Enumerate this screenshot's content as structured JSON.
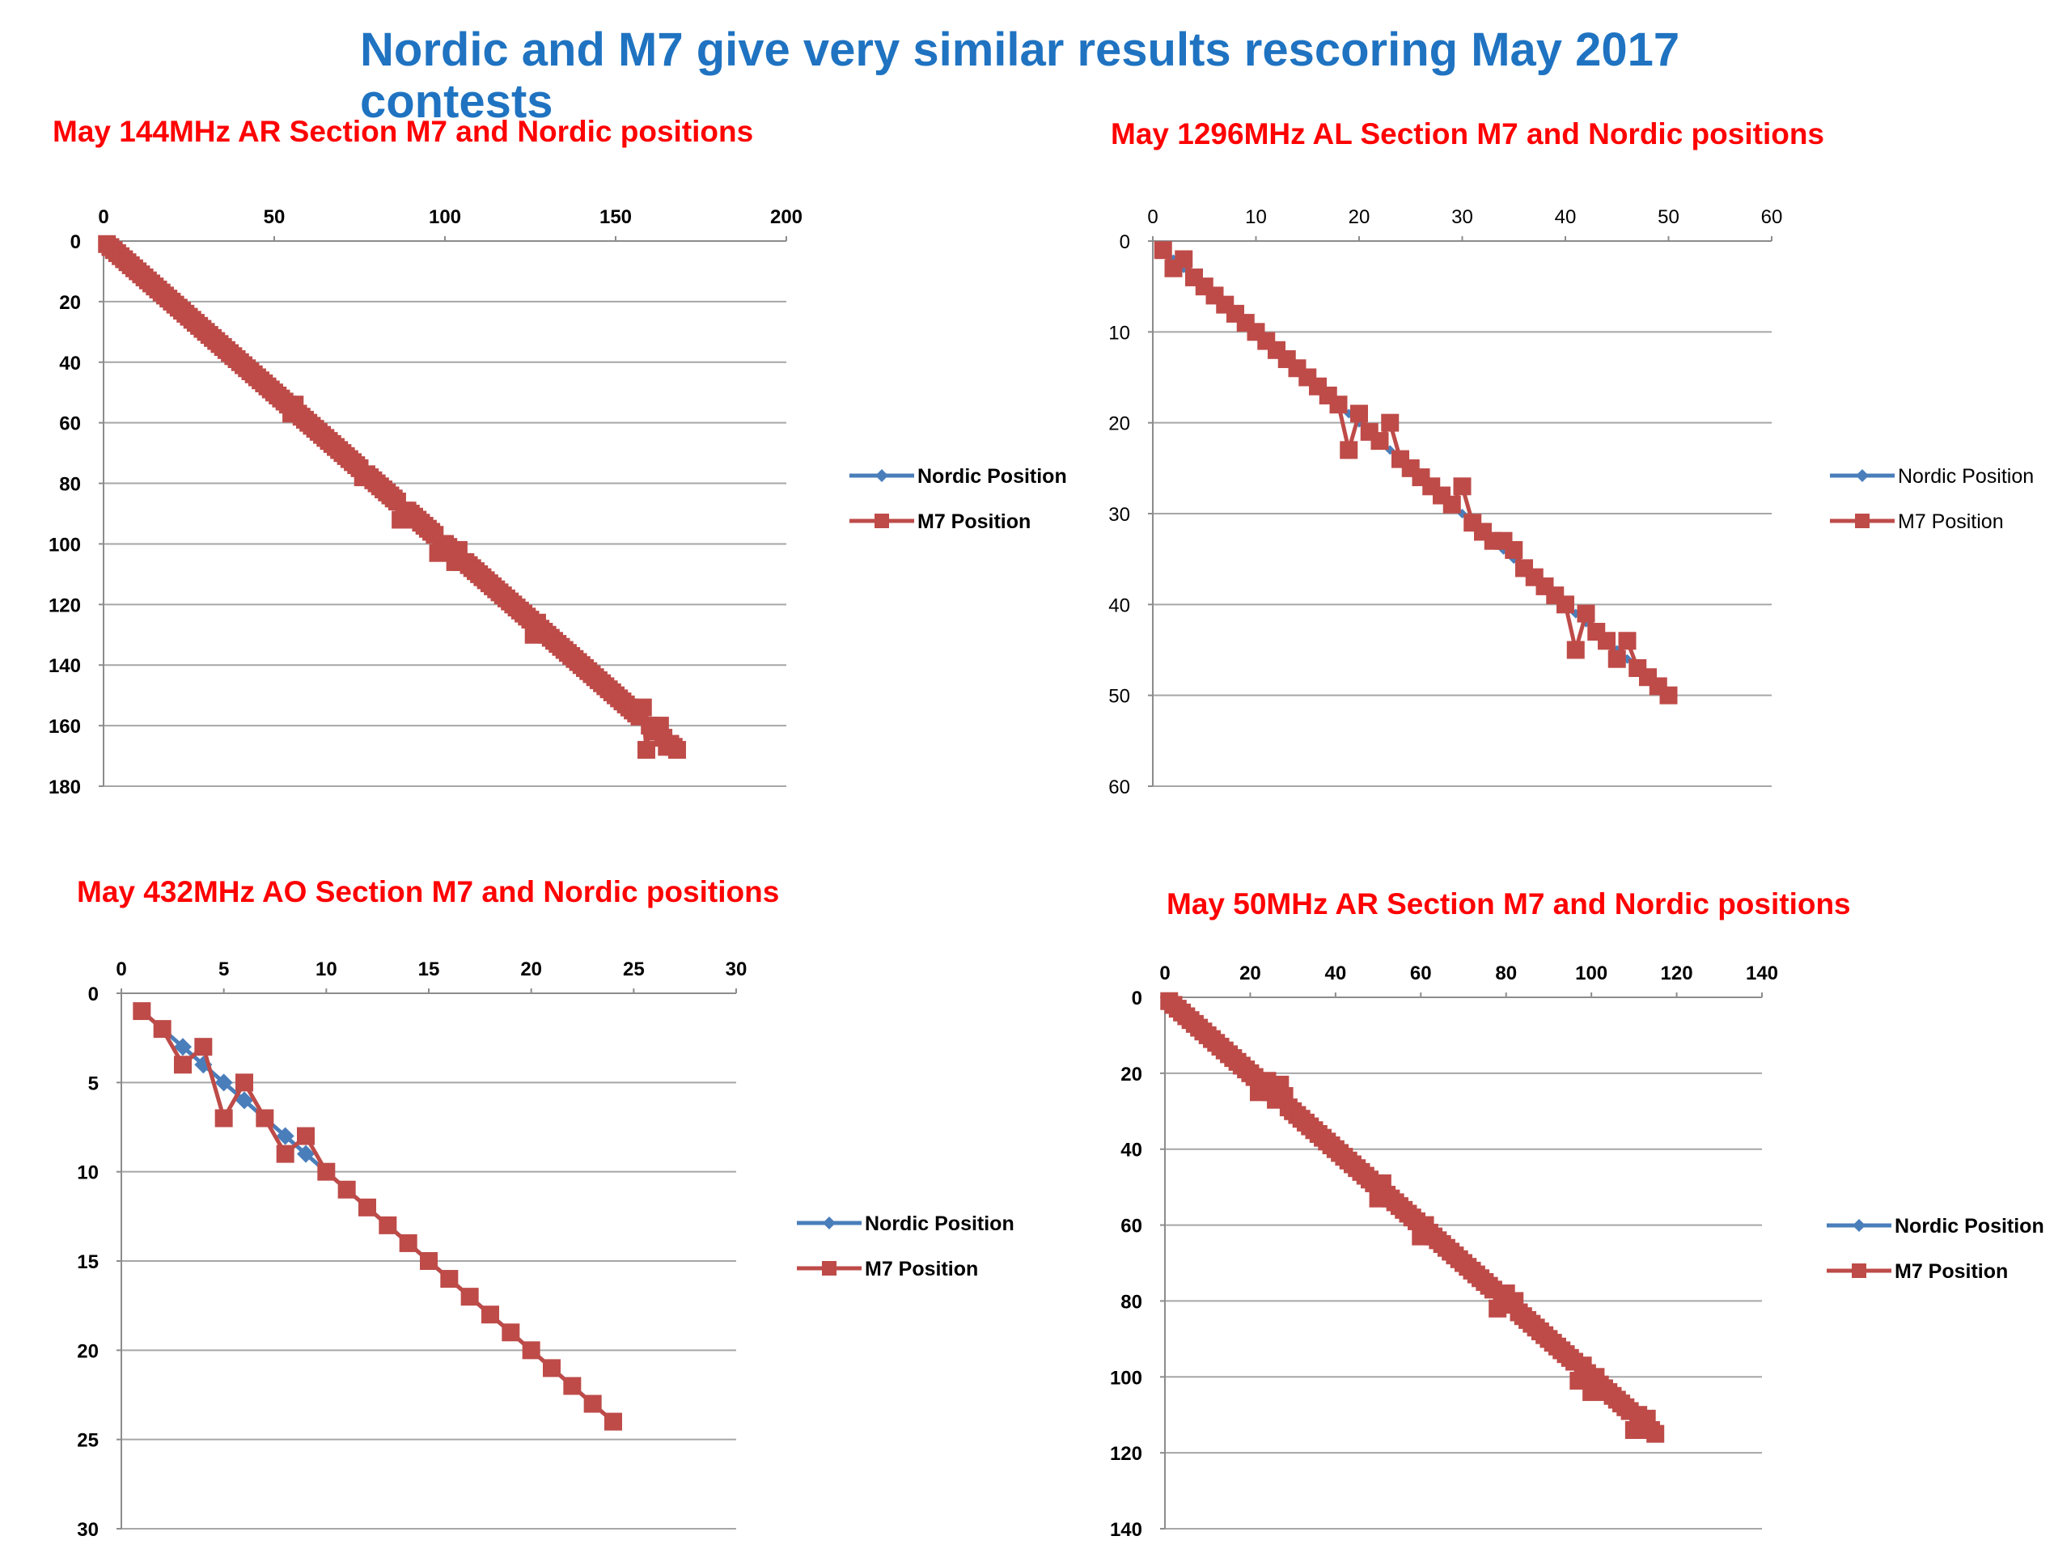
{
  "page": {
    "title": "Nordic and M7 give very similar results rescoring May 2017 contests"
  },
  "colors": {
    "title": "#1f73c1",
    "chart_title": "#ff0000",
    "nordic": "#4a7ebb",
    "m7": "#be4b48",
    "grid": "#a6a6a6"
  },
  "chart_data": [
    {
      "type": "line",
      "title": "May 144MHz AR Section M7 and Nordic positions",
      "xlabel": "",
      "ylabel": "",
      "xlim": [
        0,
        200
      ],
      "ylim": [
        180,
        0
      ],
      "x_ticks": [
        0,
        50,
        100,
        150,
        200
      ],
      "y_ticks": [
        0,
        20,
        40,
        60,
        80,
        100,
        120,
        140,
        160,
        180
      ],
      "x_axis_position": "top",
      "grid": true,
      "legend_position": "right",
      "bold_ticks": true,
      "series": [
        {
          "name": "Nordic Position",
          "n": 168,
          "marker": "diamond",
          "color": "#4a7ebb"
        },
        {
          "name": "M7 Position",
          "marker": "square",
          "color": "#be4b48",
          "deviations": {
            "55": 57,
            "56": 54,
            "76": 78,
            "87": 92,
            "88": 89,
            "98": 103,
            "99": 100,
            "103": 106,
            "104": 102,
            "105": 106,
            "126": 130,
            "127": 126,
            "158": 154,
            "159": 168,
            "163": 160,
            "165": 167
          }
        }
      ]
    },
    {
      "type": "line",
      "title": "May 1296MHz AL Section M7 and Nordic positions",
      "xlabel": "",
      "ylabel": "",
      "xlim": [
        0,
        60
      ],
      "ylim": [
        60,
        0
      ],
      "x_ticks": [
        0,
        10,
        20,
        30,
        40,
        50,
        60
      ],
      "y_ticks": [
        0,
        10,
        20,
        30,
        40,
        50,
        60
      ],
      "x_axis_position": "top",
      "grid": true,
      "legend_position": "right",
      "bold_ticks": false,
      "series": [
        {
          "name": "Nordic Position",
          "n": 50,
          "marker": "diamond",
          "color": "#4a7ebb"
        },
        {
          "name": "M7 Position",
          "marker": "square",
          "color": "#be4b48",
          "deviations": {
            "2": 3,
            "3": 2,
            "19": 23,
            "20": 19,
            "21": 21,
            "22": 22,
            "23": 20,
            "30": 27,
            "31": 31,
            "32": 32,
            "34": 33,
            "35": 34,
            "41": 45,
            "42": 41,
            "45": 46,
            "46": 44,
            "47": 47,
            "48": 48
          }
        }
      ]
    },
    {
      "type": "line",
      "title": "May 432MHz AO Section M7 and Nordic positions",
      "xlabel": "",
      "ylabel": "",
      "xlim": [
        0,
        30
      ],
      "ylim": [
        30,
        0
      ],
      "x_ticks": [
        0,
        5,
        10,
        15,
        20,
        25,
        30
      ],
      "y_ticks": [
        0,
        5,
        10,
        15,
        20,
        25,
        30
      ],
      "x_axis_position": "top",
      "grid": true,
      "legend_position": "right",
      "bold_ticks": true,
      "series": [
        {
          "name": "Nordic Position",
          "n": 24,
          "marker": "diamond",
          "color": "#4a7ebb"
        },
        {
          "name": "M7 Position",
          "marker": "square",
          "color": "#be4b48",
          "deviations": {
            "3": 4,
            "4": 3,
            "5": 7,
            "6": 5,
            "8": 9,
            "9": 8
          }
        }
      ]
    },
    {
      "type": "line",
      "title": "May 50MHz AR Section M7 and Nordic positions",
      "xlabel": "",
      "ylabel": "",
      "xlim": [
        0,
        140
      ],
      "ylim": [
        140,
        0
      ],
      "x_ticks": [
        0,
        20,
        40,
        60,
        80,
        100,
        120,
        140
      ],
      "y_ticks": [
        0,
        20,
        40,
        60,
        80,
        100,
        120,
        140
      ],
      "x_axis_position": "top",
      "grid": true,
      "legend_position": "right",
      "bold_ticks": true,
      "series": [
        {
          "name": "Nordic Position",
          "n": 115,
          "marker": "diamond",
          "color": "#4a7ebb"
        },
        {
          "name": "M7 Position",
          "marker": "square",
          "color": "#be4b48",
          "deviations": {
            "22": 25,
            "24": 22,
            "26": 27,
            "27": 23,
            "28": 26,
            "50": 53,
            "51": 49,
            "60": 63,
            "61": 60,
            "78": 82,
            "80": 78,
            "81": 81,
            "82": 80,
            "97": 101,
            "98": 97,
            "100": 104,
            "101": 100,
            "110": 114,
            "111": 110,
            "112": 113,
            "113": 111
          }
        }
      ]
    }
  ]
}
